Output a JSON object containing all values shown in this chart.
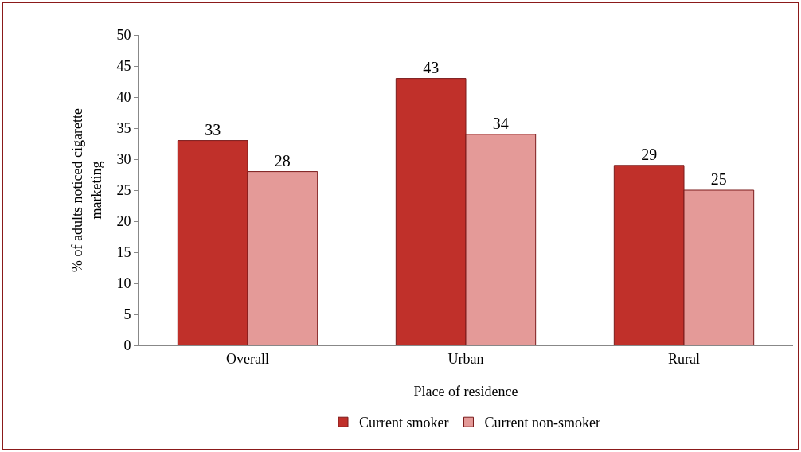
{
  "chart_data": {
    "type": "bar",
    "xlabel": "Place of residence",
    "ylabel": "% of adults noticed cigarette\nmarketing",
    "categories": [
      "Overall",
      "Urban",
      "Rural"
    ],
    "series": [
      {
        "name": "Current smoker",
        "color": "#c0302a",
        "values": [
          33,
          43,
          29
        ]
      },
      {
        "name": "Current non-smoker",
        "color": "#e49a98",
        "values": [
          28,
          34,
          25
        ]
      }
    ],
    "ylim": [
      0,
      50
    ],
    "yticks": [
      0,
      5,
      10,
      15,
      20,
      25,
      30,
      35,
      40,
      45,
      50
    ],
    "grid": false,
    "legend": "bottom",
    "data_labels": true
  }
}
